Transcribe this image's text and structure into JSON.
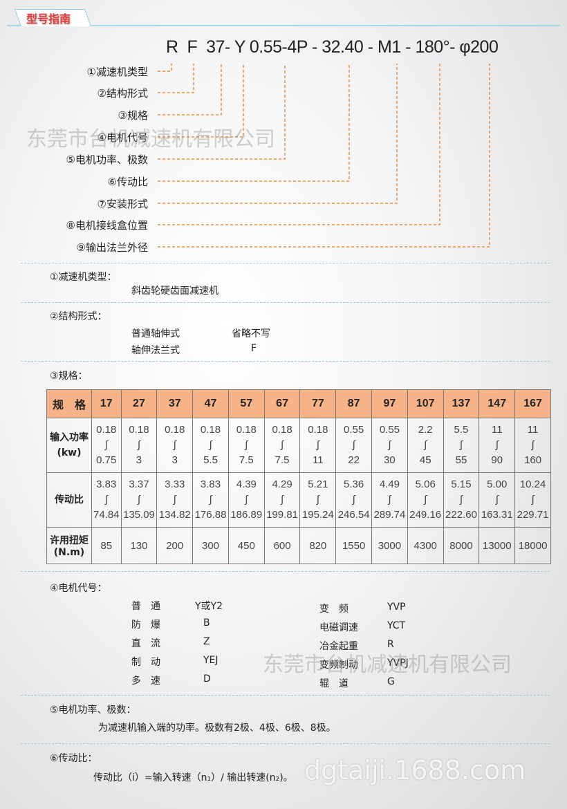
{
  "header": {
    "tab_title": "型号指南"
  },
  "model_code": "R  F  37- Y 0.55-4P - 32.40 - M1 - 180°- φ200",
  "callouts": [
    "①减速机类型",
    "②结构形式",
    "③规格",
    "④电机代号",
    "⑤电机功率、极数",
    "⑥传动比",
    "⑦安装形式",
    "⑧电机接线盒位置",
    "⑨输出法兰外径"
  ],
  "accent_color": "#f08a3c",
  "sections": {
    "s1": {
      "title": "①减速机类型：",
      "text": "斜齿轮硬齿面减速机"
    },
    "s2": {
      "title": "②结构形式：",
      "rows": [
        [
          "普通轴伸式",
          "省略不写"
        ],
        [
          "轴伸法兰式",
          "F"
        ]
      ]
    },
    "s3": {
      "title": "③规格："
    },
    "s4": {
      "title": "④电机代号：",
      "left": [
        [
          "普　通",
          "Y或Y2"
        ],
        [
          "防　爆",
          "B"
        ],
        [
          "直　流",
          "Z"
        ],
        [
          "制　动",
          "YEJ"
        ],
        [
          "多　速",
          "D"
        ]
      ],
      "right": [
        [
          "变　频",
          "YVP"
        ],
        [
          "电磁调速",
          "YCT"
        ],
        [
          "冶金起重",
          "R"
        ],
        [
          "变频制动",
          "YVPJ"
        ],
        [
          "辊　道",
          "G"
        ]
      ]
    },
    "s5": {
      "title": "⑤电机功率、极数：",
      "text": "为减速机输入端的功率。极数有2极、4极、6极、8极。"
    },
    "s6": {
      "title": "⑥传动比：",
      "text": "传动比（i）=输入转速（n₁）/ 输出转速(n₂)。"
    }
  },
  "table": {
    "header": "规　格",
    "sizes": [
      "17",
      "27",
      "37",
      "47",
      "57",
      "67",
      "77",
      "87",
      "97",
      "107",
      "137",
      "147",
      "167"
    ],
    "power_label": [
      "输入功率",
      "(kw)"
    ],
    "power": [
      [
        "0.18",
        "0.75"
      ],
      [
        "0.18",
        "3"
      ],
      [
        "0.18",
        "3"
      ],
      [
        "0.18",
        "5.5"
      ],
      [
        "0.18",
        "7.5"
      ],
      [
        "0.18",
        "7.5"
      ],
      [
        "0.18",
        "11"
      ],
      [
        "0.55",
        "22"
      ],
      [
        "0.55",
        "30"
      ],
      [
        "2.2",
        "45"
      ],
      [
        "5.5",
        "55"
      ],
      [
        "11",
        "90"
      ],
      [
        "11",
        "160"
      ]
    ],
    "ratio_label": "传动比",
    "ratio": [
      [
        "3.83",
        "74.84"
      ],
      [
        "3.37",
        "135.09"
      ],
      [
        "3.33",
        "134.82"
      ],
      [
        "3.83",
        "176.88"
      ],
      [
        "4.39",
        "186.89"
      ],
      [
        "4.29",
        "199.81"
      ],
      [
        "5.21",
        "195.24"
      ],
      [
        "5.36",
        "246.54"
      ],
      [
        "4.49",
        "289.74"
      ],
      [
        "5.06",
        "249.16"
      ],
      [
        "5.15",
        "222.60"
      ],
      [
        "5.00",
        "163.31"
      ],
      [
        "10.24",
        "229.71"
      ]
    ],
    "range_mark": "∫",
    "torque_label": [
      "许用扭矩",
      "(N.m)"
    ],
    "torque": [
      "85",
      "130",
      "200",
      "300",
      "450",
      "600",
      "820",
      "1550",
      "3000",
      "4300",
      "8000",
      "13000",
      "18000"
    ]
  },
  "watermarks": {
    "company": "东莞市台机减速机有限公司",
    "site": "dgtaiji.1688.com"
  }
}
